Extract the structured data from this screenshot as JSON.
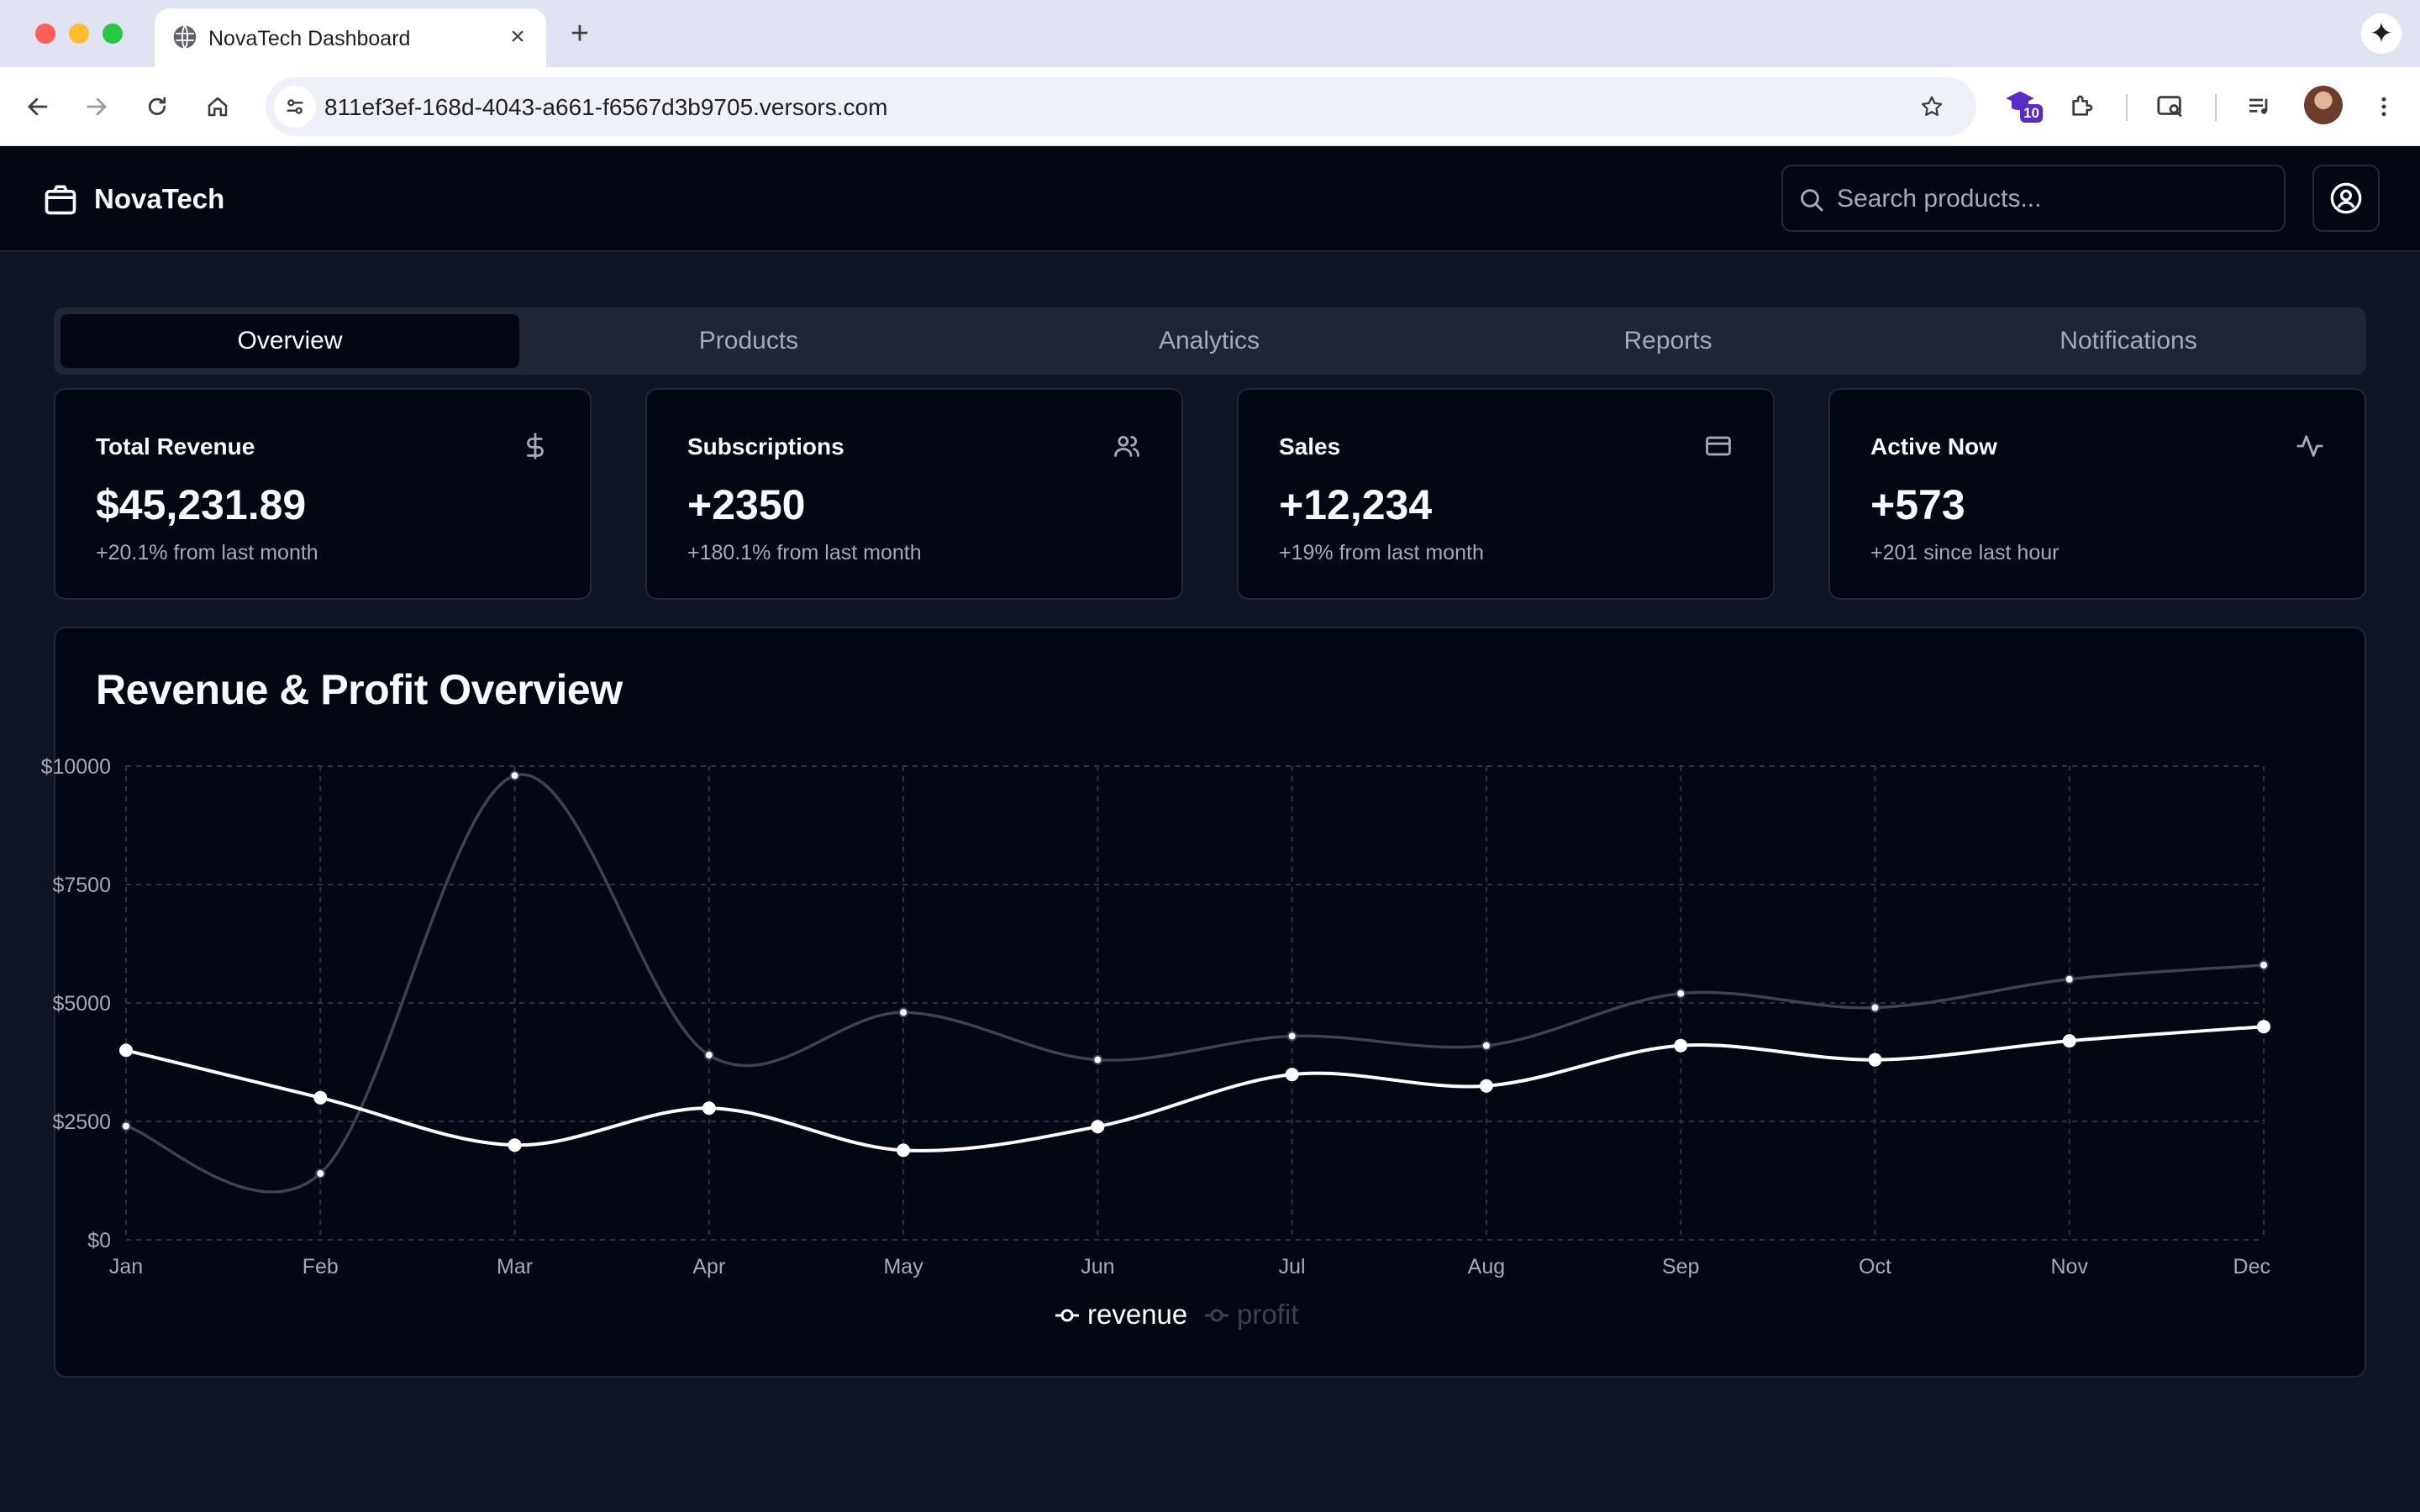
{
  "browser": {
    "tab_title": "NovaTech Dashboard",
    "url": "811ef3ef-168d-4043-a661-f6567d3b9705.versors.com",
    "extension_badge": "10"
  },
  "app": {
    "brand": "NovaTech",
    "search": {
      "placeholder": "Search products..."
    },
    "tabs": [
      {
        "label": "Overview",
        "active": true
      },
      {
        "label": "Products",
        "active": false
      },
      {
        "label": "Analytics",
        "active": false
      },
      {
        "label": "Reports",
        "active": false
      },
      {
        "label": "Notifications",
        "active": false
      }
    ],
    "stats": [
      {
        "title": "Total Revenue",
        "value": "$45,231.89",
        "sub": "+20.1% from last month",
        "icon": "dollar-icon"
      },
      {
        "title": "Subscriptions",
        "value": "+2350",
        "sub": "+180.1% from last month",
        "icon": "users-icon"
      },
      {
        "title": "Sales",
        "value": "+12,234",
        "sub": "+19% from last month",
        "icon": "credit-card-icon"
      },
      {
        "title": "Active Now",
        "value": "+573",
        "sub": "+201 since last hour",
        "icon": "activity-icon"
      }
    ],
    "chart_title": "Revenue & Profit Overview"
  },
  "chart_data": {
    "type": "line",
    "title": "Revenue & Profit Overview",
    "categories": [
      "Jan",
      "Feb",
      "Mar",
      "Apr",
      "May",
      "Jun",
      "Jul",
      "Aug",
      "Sep",
      "Oct",
      "Nov",
      "Dec"
    ],
    "y_ticks": [
      "$0",
      "$2500",
      "$5000",
      "$7500",
      "$10000"
    ],
    "ylim": [
      0,
      10000
    ],
    "grid": true,
    "legend_position": "bottom-center",
    "series": [
      {
        "name": "revenue",
        "color": "#ffffff",
        "values": [
          4000,
          3000,
          2000,
          2780,
          1890,
          2390,
          3490,
          3250,
          4100,
          3800,
          4200,
          4500
        ]
      },
      {
        "name": "profit",
        "color": "#3b4250",
        "values": [
          2400,
          1400,
          9800,
          3900,
          4800,
          3800,
          4300,
          4100,
          5200,
          4900,
          5500,
          5800
        ]
      }
    ]
  },
  "colors": {
    "page_bg": "#0f1524",
    "card_bg": "#030712",
    "border": "#1f2937",
    "muted_text": "#a3aab8"
  }
}
